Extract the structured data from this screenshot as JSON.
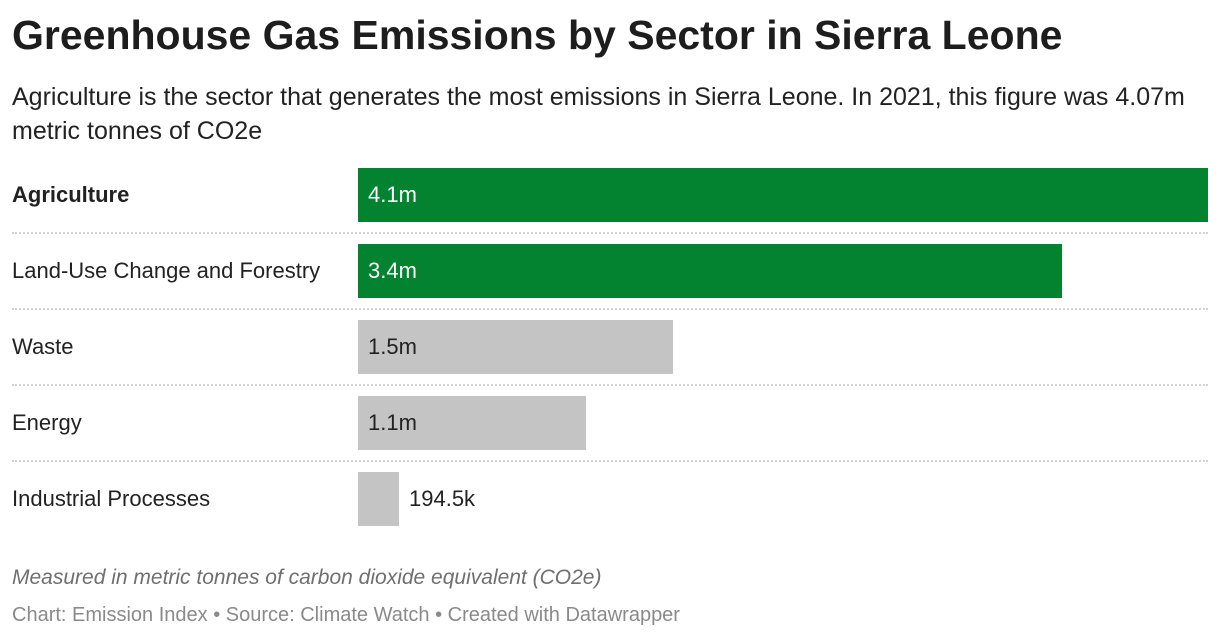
{
  "header": {
    "title": "Greenhouse Gas Emissions by Sector in Sierra Leone",
    "subtitle": "Agriculture is the sector that generates the most emissions in Sierra Leone. In 2021, this figure was 4.07m metric tonnes of CO2e"
  },
  "chart_data": {
    "type": "bar",
    "orientation": "horizontal",
    "categories": [
      "Agriculture",
      "Land-Use Change and Forestry",
      "Waste",
      "Energy",
      "Industrial Processes"
    ],
    "values": [
      4070000,
      3370000,
      1510000,
      1090000,
      194500
    ],
    "value_labels": [
      "4.1m",
      "3.4m",
      "1.5m",
      "1.1m",
      "194.5k"
    ],
    "bar_colors": [
      "#038230",
      "#038230",
      "#c4c4c4",
      "#c4c4c4",
      "#c4c4c4"
    ],
    "bold_categories": [
      "Agriculture"
    ],
    "xlim": [
      0,
      4070000
    ],
    "grid": false,
    "unit": "metric tonnes of CO2e"
  },
  "notes": "Measured in metric tonnes of carbon dioxide equivalent (CO2e)",
  "footer": "Chart: Emission Index • Source: Climate Watch • Created with Datawrapper"
}
